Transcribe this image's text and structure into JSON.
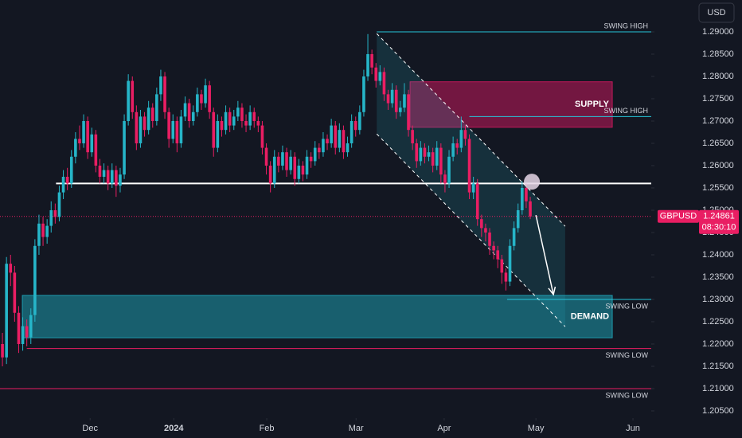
{
  "chart_data": {
    "type": "candlestick",
    "symbol": "GBPUSD",
    "currency": "USD",
    "last_price": 1.24861,
    "countdown": "08:30:10",
    "up_color": "#26b5c8",
    "down_color": "#e91e63",
    "open": [
      1.22,
      1.217,
      1.238,
      1.236,
      1.227,
      1.22,
      1.224,
      1.2215,
      1.2265,
      1.242,
      1.247,
      1.244,
      1.2465,
      1.25,
      1.2485,
      1.254,
      1.2575,
      1.256,
      1.262,
      1.266,
      1.265,
      1.27,
      1.263,
      1.267,
      1.26,
      1.2575,
      1.259,
      1.256,
      1.259,
      1.2555,
      1.258,
      1.27,
      1.279,
      1.272,
      1.265,
      1.271,
      1.268,
      1.273,
      1.27,
      1.276,
      1.28,
      1.272,
      1.266,
      1.27,
      1.265,
      1.271,
      1.274,
      1.27,
      1.272,
      1.276,
      1.274,
      1.278,
      1.272,
      1.264,
      1.27,
      1.268,
      1.272,
      1.269,
      1.271,
      1.273,
      1.27,
      1.269,
      1.272,
      1.27,
      1.269,
      1.264,
      1.26,
      1.256,
      1.262,
      1.26,
      1.263,
      1.259,
      1.262,
      1.257,
      1.26,
      1.258,
      1.262,
      1.261,
      1.264,
      1.263,
      1.266,
      1.265,
      1.269,
      1.264,
      1.268,
      1.263,
      1.265,
      1.27,
      1.268,
      1.272,
      1.28,
      1.285,
      1.282,
      1.279,
      1.281,
      1.276,
      1.274,
      1.277,
      1.272,
      1.273,
      1.276,
      1.268,
      1.265,
      1.261,
      1.264,
      1.262,
      1.263,
      1.26,
      1.264,
      1.258,
      1.256,
      1.262,
      1.265,
      1.264,
      1.268,
      1.266,
      1.254,
      1.256,
      1.248,
      1.246,
      1.245,
      1.242,
      1.241,
      1.239,
      1.236,
      1.234,
      1.242,
      1.246,
      1.25,
      1.255,
      1.252
    ],
    "high": [
      1.2225,
      1.2395,
      1.24,
      1.2375,
      1.2285,
      1.226,
      1.2255,
      1.228,
      1.2435,
      1.249,
      1.2485,
      1.248,
      1.252,
      1.2515,
      1.2555,
      1.259,
      1.2595,
      1.2635,
      1.2675,
      1.269,
      1.2715,
      1.271,
      1.2685,
      1.268,
      1.2615,
      1.2605,
      1.26,
      1.2605,
      1.26,
      1.2595,
      1.2715,
      1.2805,
      1.28,
      1.2735,
      1.2725,
      1.272,
      1.2745,
      1.274,
      1.2775,
      1.2815,
      1.281,
      1.273,
      1.2715,
      1.271,
      1.2725,
      1.2755,
      1.275,
      1.2735,
      1.2775,
      1.277,
      1.2795,
      1.279,
      1.273,
      1.2715,
      1.271,
      1.2735,
      1.273,
      1.2725,
      1.2745,
      1.274,
      1.2715,
      1.2735,
      1.273,
      1.271,
      1.27,
      1.265,
      1.261,
      1.2635,
      1.263,
      1.2645,
      1.264,
      1.2635,
      1.263,
      1.2615,
      1.261,
      1.2635,
      1.263,
      1.2655,
      1.265,
      1.2675,
      1.267,
      1.2705,
      1.27,
      1.2695,
      1.269,
      1.2665,
      1.2715,
      1.271,
      1.2735,
      1.2815,
      1.2895,
      1.286,
      1.283,
      1.2825,
      1.282,
      1.277,
      1.2785,
      1.278,
      1.2745,
      1.2785,
      1.277,
      1.269,
      1.266,
      1.2655,
      1.265,
      1.2645,
      1.264,
      1.2655,
      1.265,
      1.259,
      1.2635,
      1.2665,
      1.266,
      1.271,
      1.269,
      1.267,
      1.2575,
      1.257,
      1.249,
      1.247,
      1.246,
      1.243,
      1.242,
      1.24,
      1.237,
      1.2435,
      1.2475,
      1.2515,
      1.2565,
      1.256,
      1.253
    ],
    "low": [
      1.215,
      1.2155,
      1.233,
      1.225,
      1.218,
      1.2185,
      1.2195,
      1.22,
      1.225,
      1.24,
      1.242,
      1.2425,
      1.245,
      1.247,
      1.2475,
      1.2525,
      1.2545,
      1.255,
      1.2605,
      1.2635,
      1.264,
      1.2615,
      1.262,
      1.2585,
      1.256,
      1.256,
      1.2545,
      1.255,
      1.253,
      1.254,
      1.257,
      1.269,
      1.2705,
      1.2635,
      1.264,
      1.2665,
      1.267,
      1.2685,
      1.269,
      1.2745,
      1.2705,
      1.264,
      1.265,
      1.263,
      1.264,
      1.27,
      1.2685,
      1.269,
      1.271,
      1.2725,
      1.273,
      1.2705,
      1.262,
      1.263,
      1.2665,
      1.267,
      1.2675,
      1.268,
      1.27,
      1.2685,
      1.2675,
      1.268,
      1.2685,
      1.2675,
      1.2625,
      1.258,
      1.254,
      1.255,
      1.2585,
      1.259,
      1.2575,
      1.258,
      1.2555,
      1.256,
      1.2565,
      1.257,
      1.2595,
      1.26,
      1.2615,
      1.262,
      1.2635,
      1.264,
      1.2625,
      1.263,
      1.2615,
      1.262,
      1.264,
      1.2665,
      1.267,
      1.271,
      1.279,
      1.2805,
      1.2775,
      1.278,
      1.2745,
      1.2725,
      1.273,
      1.2705,
      1.271,
      1.272,
      1.2665,
      1.2635,
      1.2595,
      1.26,
      1.2605,
      1.261,
      1.2585,
      1.259,
      1.256,
      1.254,
      1.255,
      1.261,
      1.2625,
      1.263,
      1.2645,
      1.2525,
      1.2525,
      1.2465,
      1.244,
      1.243,
      1.24,
      1.239,
      1.237,
      1.2335,
      1.232,
      1.233,
      1.241,
      1.245,
      1.249,
      1.2505,
      1.248
    ],
    "close": [
      1.217,
      1.238,
      1.236,
      1.227,
      1.22,
      1.224,
      1.2215,
      1.2265,
      1.242,
      1.247,
      1.244,
      1.2465,
      1.25,
      1.2485,
      1.254,
      1.2575,
      1.256,
      1.262,
      1.266,
      1.265,
      1.27,
      1.263,
      1.267,
      1.26,
      1.2575,
      1.259,
      1.256,
      1.259,
      1.2555,
      1.258,
      1.27,
      1.279,
      1.272,
      1.265,
      1.271,
      1.268,
      1.273,
      1.27,
      1.276,
      1.28,
      1.272,
      1.266,
      1.27,
      1.265,
      1.271,
      1.274,
      1.27,
      1.272,
      1.276,
      1.274,
      1.278,
      1.272,
      1.264,
      1.27,
      1.268,
      1.272,
      1.269,
      1.271,
      1.273,
      1.27,
      1.269,
      1.272,
      1.27,
      1.269,
      1.264,
      1.26,
      1.256,
      1.262,
      1.26,
      1.263,
      1.259,
      1.262,
      1.257,
      1.26,
      1.258,
      1.262,
      1.261,
      1.264,
      1.263,
      1.266,
      1.265,
      1.269,
      1.264,
      1.268,
      1.263,
      1.265,
      1.27,
      1.268,
      1.272,
      1.28,
      1.285,
      1.282,
      1.279,
      1.281,
      1.276,
      1.274,
      1.277,
      1.272,
      1.273,
      1.276,
      1.268,
      1.265,
      1.261,
      1.264,
      1.262,
      1.263,
      1.26,
      1.264,
      1.258,
      1.256,
      1.262,
      1.265,
      1.264,
      1.268,
      1.266,
      1.254,
      1.256,
      1.248,
      1.246,
      1.245,
      1.242,
      1.241,
      1.239,
      1.236,
      1.234,
      1.242,
      1.246,
      1.25,
      1.255,
      1.252,
      1.2486
    ],
    "xlim": [
      -0.6,
      159.8
    ],
    "xticks": [
      {
        "value": 21.6,
        "label": "Dec"
      },
      {
        "value": 42.2,
        "label": "2024"
      },
      {
        "value": 65.1,
        "label": "Feb"
      },
      {
        "value": 87.1,
        "label": "Mar"
      },
      {
        "value": 108.8,
        "label": "Apr"
      },
      {
        "value": 131.4,
        "label": "May"
      },
      {
        "value": 155.3,
        "label": "Jun"
      }
    ],
    "ylim": [
      1.20339,
      1.29714
    ],
    "yticks": [
      {
        "value": 1.29,
        "label": "1.29000"
      },
      {
        "value": 1.285,
        "label": "1.28500"
      },
      {
        "value": 1.28,
        "label": "1.28000"
      },
      {
        "value": 1.275,
        "label": "1.27500"
      },
      {
        "value": 1.27,
        "label": "1.27000"
      },
      {
        "value": 1.265,
        "label": "1.26500"
      },
      {
        "value": 1.26,
        "label": "1.26000"
      },
      {
        "value": 1.255,
        "label": "1.25500"
      },
      {
        "value": 1.25,
        "label": "1.25000"
      },
      {
        "value": 1.245,
        "label": "1.24500"
      },
      {
        "value": 1.24,
        "label": "1.24000"
      },
      {
        "value": 1.235,
        "label": "1.23500"
      },
      {
        "value": 1.23,
        "label": "1.23000"
      },
      {
        "value": 1.225,
        "label": "1.22500"
      },
      {
        "value": 1.22,
        "label": "1.22000"
      },
      {
        "value": 1.215,
        "label": "1.21500"
      },
      {
        "value": 1.21,
        "label": "1.21000"
      },
      {
        "value": 1.205,
        "label": "1.20500"
      }
    ],
    "levels": [
      {
        "label": "SWING HIGH",
        "value": 1.29,
        "start": 92.2,
        "color": "#26c6da",
        "label_position": "above"
      },
      {
        "label": "SWING HIGH",
        "value": 1.271,
        "start": 115,
        "color": "#26c6da",
        "label_position": "above"
      },
      {
        "value": 1.256,
        "start": 13.2,
        "color": "#ffffff"
      },
      {
        "label": "SWING LOW",
        "value": 1.23,
        "start": 124.3,
        "color": "#26c6da",
        "label_position": "below"
      },
      {
        "label": "SWING LOW",
        "value": 1.219,
        "start": 6,
        "color": "#e91e63",
        "label_position": "below"
      },
      {
        "label": "SWING LOW",
        "value": 1.21,
        "start": -0.6,
        "color": "#e91e63",
        "label_position": "below"
      }
    ],
    "zones": [
      {
        "label": "SUPPLY",
        "top": 1.2788,
        "bottom": 1.2686,
        "start": 100.4,
        "end": 150.2,
        "color": "#c2185b"
      },
      {
        "label": "DEMAND",
        "top": 1.2309,
        "bottom": 1.2214,
        "start": 4.9,
        "end": 150.2,
        "color": "#1e9aad"
      }
    ],
    "channel": {
      "start": 92.2,
      "end": 138.6,
      "upper": [
        1.2896,
        1.2464
      ],
      "lower": [
        1.2671,
        1.2239
      ]
    },
    "arrow": {
      "from": [
        131.4,
        1.2489
      ],
      "to": [
        135.7,
        1.2311
      ]
    },
    "marker": {
      "x": 130.4,
      "y": 1.2564
    }
  }
}
